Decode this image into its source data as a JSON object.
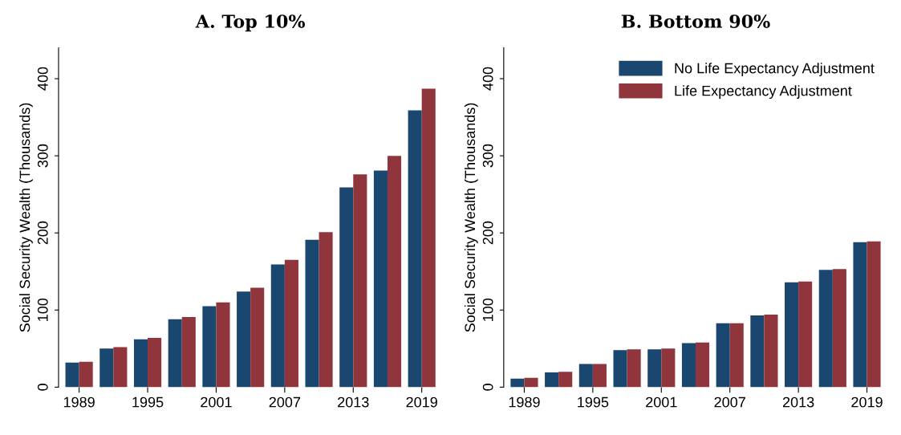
{
  "chart_data": [
    {
      "type": "bar",
      "title": "A. Top 10%",
      "ylabel": "Social Security Wealth (Thousands)",
      "categories": [
        "1989",
        null,
        "1995",
        null,
        "2001",
        null,
        "2007",
        null,
        "2013",
        null,
        "2019"
      ],
      "series": [
        {
          "color": "#1a476f",
          "values": [
            32,
            50,
            62,
            88,
            105,
            124,
            159,
            191,
            259,
            281,
            359
          ]
        },
        {
          "color": "#90353b",
          "values": [
            33,
            52,
            64,
            91,
            110,
            129,
            165,
            201,
            276,
            300,
            387
          ]
        }
      ],
      "ylim": [
        0,
        440
      ],
      "yticks": [
        0,
        100,
        200,
        300,
        400
      ],
      "grid": false,
      "legend": false
    },
    {
      "type": "bar",
      "title": "B. Bottom 90%",
      "ylabel": "Social Security Wealth (Thousands)",
      "categories": [
        "1989",
        null,
        "1995",
        null,
        "2001",
        null,
        "2007",
        null,
        "2013",
        null,
        "2019"
      ],
      "series": [
        {
          "name": "No Life Expectancy Adjustment",
          "color": "#1a476f",
          "values": [
            11,
            19,
            30,
            48,
            49,
            57,
            83,
            93,
            136,
            152,
            188
          ]
        },
        {
          "name": "Life Expectancy Adjustment",
          "color": "#90353b",
          "values": [
            12,
            20,
            30,
            49,
            50,
            58,
            83,
            94,
            137,
            153,
            189
          ]
        }
      ],
      "ylim": [
        0,
        440
      ],
      "yticks": [
        0,
        100,
        200,
        300,
        400
      ],
      "grid": false,
      "legend": "top right"
    }
  ]
}
